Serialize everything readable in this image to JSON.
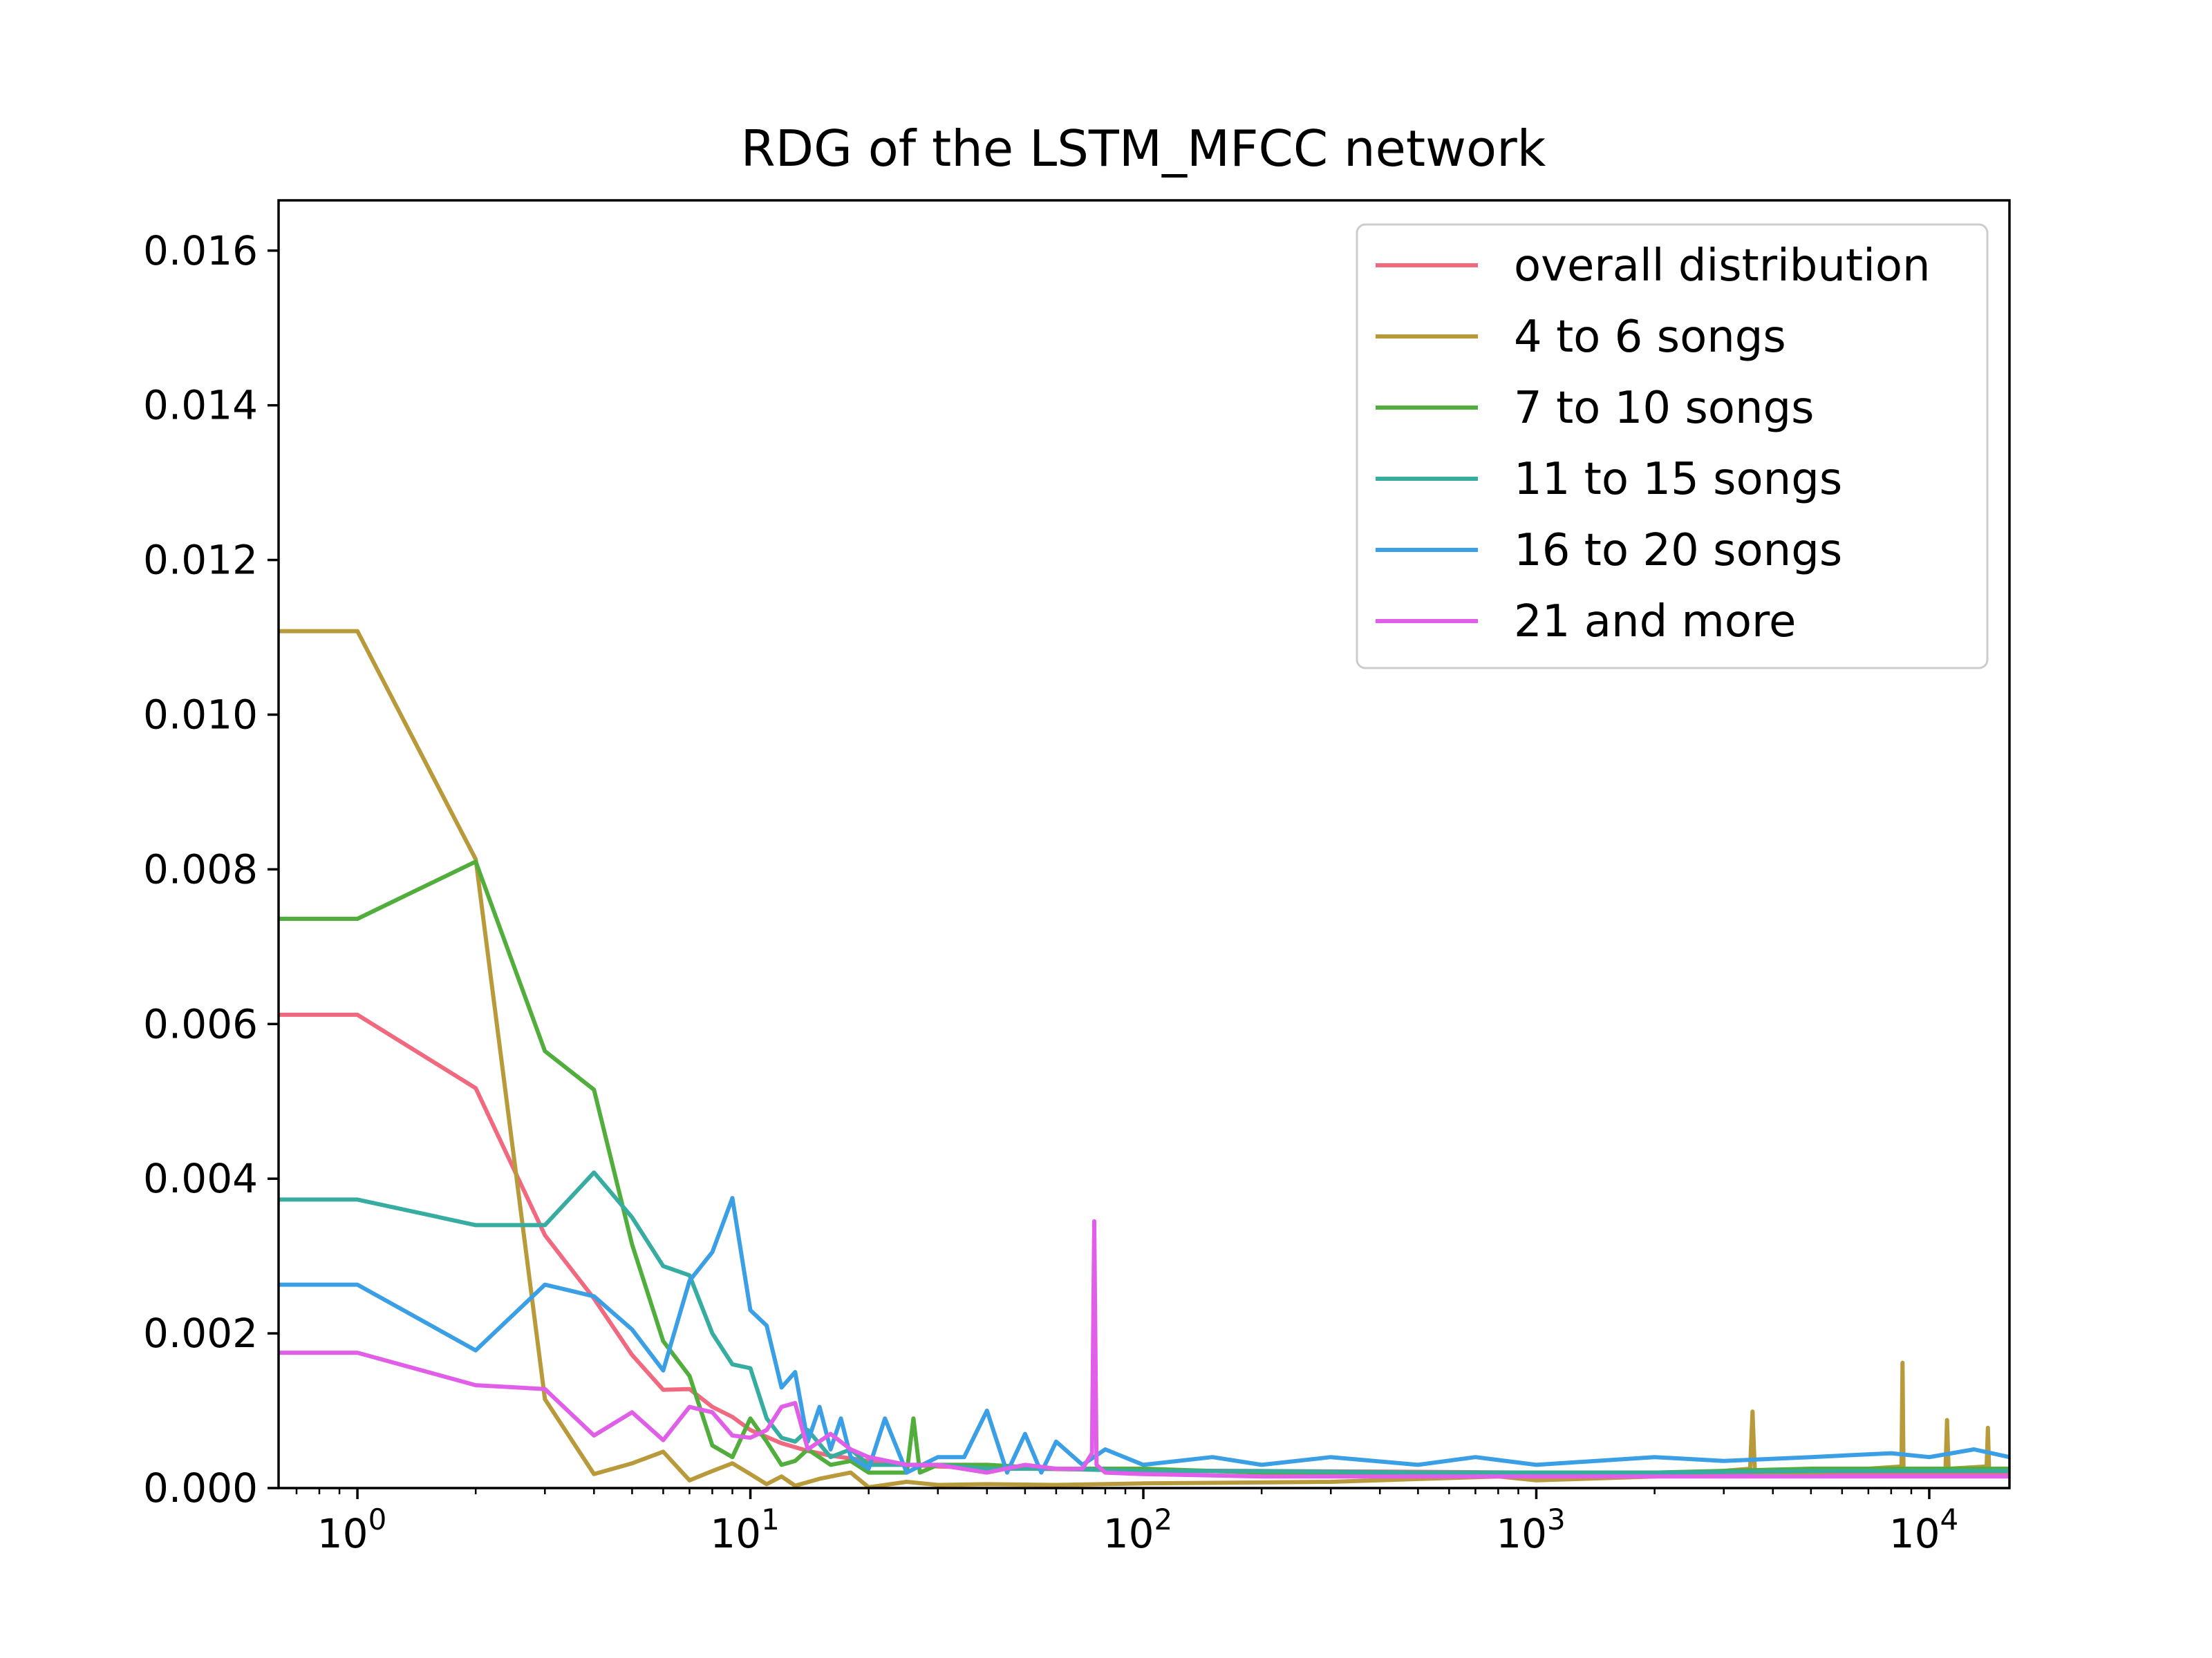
{
  "chart_data": {
    "type": "line",
    "title": "RDG of the LSTM_MFCC network",
    "xlabel": "",
    "ylabel": "",
    "xscale": "log",
    "xlim": [
      0.63,
      16000
    ],
    "ylim": [
      0,
      0.01665
    ],
    "grid": false,
    "legend_placement": "upper right",
    "y_ticks": [
      "0.000",
      "0.002",
      "0.004",
      "0.006",
      "0.008",
      "0.010",
      "0.012",
      "0.014",
      "0.016"
    ],
    "x_ticks": [
      {
        "base": "10",
        "exp": "0",
        "value": 1
      },
      {
        "base": "10",
        "exp": "1",
        "value": 10
      },
      {
        "base": "10",
        "exp": "2",
        "value": 100
      },
      {
        "base": "10",
        "exp": "3",
        "value": 1000
      },
      {
        "base": "10",
        "exp": "4",
        "value": 10000
      }
    ],
    "series": [
      {
        "name": "overall distribution",
        "color": "#f0697e",
        "x": [
          0.5,
          1,
          2,
          3,
          4,
          5,
          6,
          7,
          8,
          9,
          10,
          12,
          14,
          16,
          20,
          25,
          30,
          40,
          50,
          70,
          100,
          200,
          500,
          1000,
          2000,
          5000,
          10000,
          16000
        ],
        "y": [
          0.00612,
          0.00612,
          0.00517,
          0.00327,
          0.00245,
          0.00172,
          0.00127,
          0.00128,
          0.00105,
          0.00092,
          0.00075,
          0.00058,
          0.00048,
          0.00042,
          0.00035,
          0.0003,
          0.00028,
          0.00026,
          0.00025,
          0.00024,
          0.00023,
          0.00022,
          0.00021,
          0.0002,
          0.0002,
          0.0002,
          0.0002,
          0.0002
        ]
      },
      {
        "name": "4 to 6 songs",
        "color": "#b89a3a",
        "x": [
          0.5,
          1,
          2,
          3,
          4,
          5,
          6,
          7,
          8,
          9,
          10,
          11,
          12,
          13,
          15,
          18,
          20,
          25,
          30,
          40,
          60,
          100,
          300,
          800,
          1000,
          2000,
          3500,
          3550,
          3600,
          5000,
          8500,
          8550,
          8600,
          11000,
          11100,
          11200,
          14000,
          14100,
          14200,
          16000
        ],
        "y": [
          0.01108,
          0.01108,
          0.00813,
          0.00115,
          0.00018,
          0.00032,
          0.00047,
          0.0001,
          0.00022,
          0.00032,
          0.00018,
          5e-05,
          0.00015,
          3e-05,
          0.00012,
          0.0002,
          1e-05,
          8e-05,
          4e-05,
          5e-05,
          4e-05,
          6e-05,
          8e-05,
          0.00015,
          0.0001,
          0.00015,
          0.00025,
          0.00099,
          0.0002,
          0.0002,
          0.00028,
          0.00162,
          0.00025,
          0.00025,
          0.00088,
          0.00025,
          0.00028,
          0.00078,
          0.00025,
          0.00025
        ]
      },
      {
        "name": "7 to 10 songs",
        "color": "#52ae3c",
        "x": [
          0.5,
          1,
          2,
          3,
          4,
          5,
          6,
          7,
          8,
          9,
          10,
          11,
          12,
          13,
          14,
          16,
          18,
          20,
          25,
          26,
          27,
          30,
          40,
          60,
          100,
          200,
          500,
          1000,
          2000,
          5000,
          10000,
          16000
        ],
        "y": [
          0.00736,
          0.00736,
          0.0081,
          0.00565,
          0.00515,
          0.00315,
          0.0019,
          0.00145,
          0.00055,
          0.0004,
          0.0009,
          0.0006,
          0.0003,
          0.00035,
          0.0005,
          0.0003,
          0.00035,
          0.0002,
          0.0002,
          0.0009,
          0.0002,
          0.0003,
          0.0003,
          0.00025,
          0.00025,
          0.0002,
          0.0002,
          0.0002,
          0.0002,
          0.00025,
          0.00025,
          0.00025
        ]
      },
      {
        "name": "11 to 15 songs",
        "color": "#36ada0",
        "x": [
          0.5,
          1,
          2,
          3,
          4,
          5,
          6,
          7,
          8,
          9,
          10,
          11,
          12,
          13,
          14,
          16,
          18,
          20,
          25,
          30,
          40,
          60,
          100,
          200,
          500,
          1000,
          2000,
          5000,
          10000,
          16000
        ],
        "y": [
          0.00373,
          0.00373,
          0.0034,
          0.0034,
          0.00408,
          0.0035,
          0.00287,
          0.00275,
          0.002,
          0.0016,
          0.00155,
          0.0009,
          0.00065,
          0.0006,
          0.00075,
          0.0004,
          0.0005,
          0.0003,
          0.0003,
          0.0003,
          0.00025,
          0.00025,
          0.00022,
          0.00022,
          0.0002,
          0.0002,
          0.0002,
          0.00022,
          0.00022,
          0.00022
        ]
      },
      {
        "name": "16 to 20 songs",
        "color": "#3b9fe6",
        "x": [
          0.5,
          1,
          2,
          3,
          4,
          5,
          6,
          7,
          8,
          9,
          10,
          11,
          12,
          13,
          14,
          15,
          16,
          17,
          18,
          20,
          22,
          25,
          30,
          35,
          40,
          45,
          50,
          55,
          60,
          70,
          80,
          100,
          150,
          200,
          300,
          500,
          700,
          1000,
          2000,
          3000,
          5000,
          8000,
          10000,
          13000,
          16000
        ],
        "y": [
          0.00263,
          0.00263,
          0.00178,
          0.00263,
          0.00248,
          0.00205,
          0.00152,
          0.00268,
          0.00305,
          0.00375,
          0.0023,
          0.0021,
          0.0013,
          0.0015,
          0.0006,
          0.00105,
          0.0005,
          0.0009,
          0.0004,
          0.00025,
          0.0009,
          0.0002,
          0.0004,
          0.0004,
          0.001,
          0.0002,
          0.0007,
          0.0002,
          0.0006,
          0.0003,
          0.0005,
          0.0003,
          0.0004,
          0.0003,
          0.0004,
          0.0003,
          0.0004,
          0.0003,
          0.0004,
          0.00035,
          0.0004,
          0.00045,
          0.0004,
          0.0005,
          0.0004
        ]
      },
      {
        "name": "21 and more",
        "color": "#e05ee8",
        "x": [
          0.5,
          1,
          2,
          3,
          4,
          5,
          6,
          7,
          8,
          9,
          10,
          11,
          12,
          13,
          14,
          16,
          18,
          20,
          25,
          30,
          40,
          50,
          60,
          70,
          74,
          75,
          76,
          80,
          100,
          200,
          500,
          1000,
          2000,
          5000,
          10000,
          16000
        ],
        "y": [
          0.00175,
          0.00175,
          0.00133,
          0.00128,
          0.00068,
          0.00098,
          0.00062,
          0.00105,
          0.00098,
          0.00068,
          0.00065,
          0.00075,
          0.00105,
          0.0011,
          0.0005,
          0.0007,
          0.0005,
          0.0004,
          0.0003,
          0.0003,
          0.0002,
          0.0003,
          0.00025,
          0.00025,
          0.00045,
          0.00345,
          0.0003,
          0.0002,
          0.00018,
          0.00015,
          0.00015,
          0.00015,
          0.00015,
          0.00015,
          0.00015,
          0.00015
        ]
      }
    ]
  }
}
